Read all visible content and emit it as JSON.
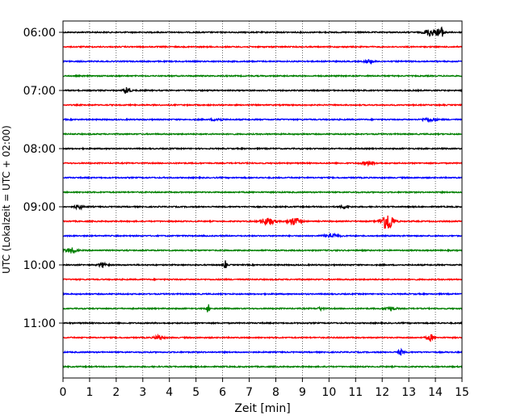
{
  "chart_data": {
    "type": "line",
    "title": "",
    "xlabel": "Zeit  [min]",
    "ylabel": "UTC (Lokalzeit = UTC + 02:00)",
    "xlim": [
      0,
      15
    ],
    "xticks": [
      0,
      1,
      2,
      3,
      4,
      5,
      6,
      7,
      8,
      9,
      10,
      11,
      12,
      13,
      14,
      15
    ],
    "yticks": [
      {
        "row": 0,
        "label": "06:00"
      },
      {
        "row": 4,
        "label": "07:00"
      },
      {
        "row": 8,
        "label": "08:00"
      },
      {
        "row": 12,
        "label": "09:00"
      },
      {
        "row": 16,
        "label": "10:00"
      },
      {
        "row": 20,
        "label": "11:00"
      }
    ],
    "grid": "vertical-dotted",
    "colors": [
      "#000000",
      "#ff0000",
      "#0000ff",
      "#008000"
    ],
    "series": [
      {
        "start": "06:00",
        "color": "#000000",
        "events": [
          {
            "t": 13.8,
            "amp": 4.5,
            "w": 0.2
          },
          {
            "t": 14.2,
            "amp": 6,
            "w": 0.15
          }
        ]
      },
      {
        "start": "06:15",
        "color": "#ff0000",
        "events": []
      },
      {
        "start": "06:30",
        "color": "#0000ff",
        "events": [
          {
            "t": 11.5,
            "amp": 2.5,
            "w": 0.15
          }
        ]
      },
      {
        "start": "06:45",
        "color": "#008000",
        "events": []
      },
      {
        "start": "07:00",
        "color": "#000000",
        "events": [
          {
            "t": 2.4,
            "amp": 5,
            "w": 0.12
          }
        ]
      },
      {
        "start": "07:15",
        "color": "#ff0000",
        "events": []
      },
      {
        "start": "07:30",
        "color": "#0000ff",
        "events": [
          {
            "t": 5.8,
            "amp": 1.5,
            "w": 0.2
          },
          {
            "t": 13.8,
            "amp": 2,
            "w": 0.25
          }
        ]
      },
      {
        "start": "07:45",
        "color": "#008000",
        "events": []
      },
      {
        "start": "08:00",
        "color": "#000000",
        "events": []
      },
      {
        "start": "08:15",
        "color": "#ff0000",
        "events": [
          {
            "t": 11.5,
            "amp": 2,
            "w": 0.25
          }
        ]
      },
      {
        "start": "08:30",
        "color": "#0000ff",
        "events": []
      },
      {
        "start": "08:45",
        "color": "#008000",
        "events": []
      },
      {
        "start": "09:00",
        "color": "#000000",
        "events": [
          {
            "t": 0.6,
            "amp": 2.5,
            "w": 0.15
          },
          {
            "t": 10.6,
            "amp": 2,
            "w": 0.15
          }
        ]
      },
      {
        "start": "09:15",
        "color": "#ff0000",
        "events": [
          {
            "t": 7.7,
            "amp": 4.5,
            "w": 0.25
          },
          {
            "t": 8.7,
            "amp": 4.5,
            "w": 0.25
          },
          {
            "t": 12.2,
            "amp": 12,
            "w": 0.22
          }
        ]
      },
      {
        "start": "09:30",
        "color": "#0000ff",
        "events": [
          {
            "t": 10.1,
            "amp": 3,
            "w": 0.25
          }
        ]
      },
      {
        "start": "09:45",
        "color": "#008000",
        "events": [
          {
            "t": 0.3,
            "amp": 3,
            "w": 0.2
          }
        ]
      },
      {
        "start": "10:00",
        "color": "#000000",
        "events": [
          {
            "t": 1.5,
            "amp": 3,
            "w": 0.15
          },
          {
            "t": 6.1,
            "amp": 5,
            "w": 0.05
          }
        ]
      },
      {
        "start": "10:15",
        "color": "#ff0000",
        "events": []
      },
      {
        "start": "10:30",
        "color": "#0000ff",
        "events": []
      },
      {
        "start": "10:45",
        "color": "#008000",
        "events": [
          {
            "t": 5.45,
            "amp": 6,
            "w": 0.05
          },
          {
            "t": 9.7,
            "amp": 2,
            "w": 0.1
          },
          {
            "t": 12.3,
            "amp": 2,
            "w": 0.2
          }
        ]
      },
      {
        "start": "11:00",
        "color": "#000000",
        "events": []
      },
      {
        "start": "11:15",
        "color": "#ff0000",
        "events": [
          {
            "t": 3.6,
            "amp": 3,
            "w": 0.15
          },
          {
            "t": 13.8,
            "amp": 4,
            "w": 0.12
          }
        ]
      },
      {
        "start": "11:30",
        "color": "#0000ff",
        "events": [
          {
            "t": 12.7,
            "amp": 3.5,
            "w": 0.1
          }
        ]
      },
      {
        "start": "11:45",
        "color": "#008000",
        "events": []
      }
    ]
  }
}
